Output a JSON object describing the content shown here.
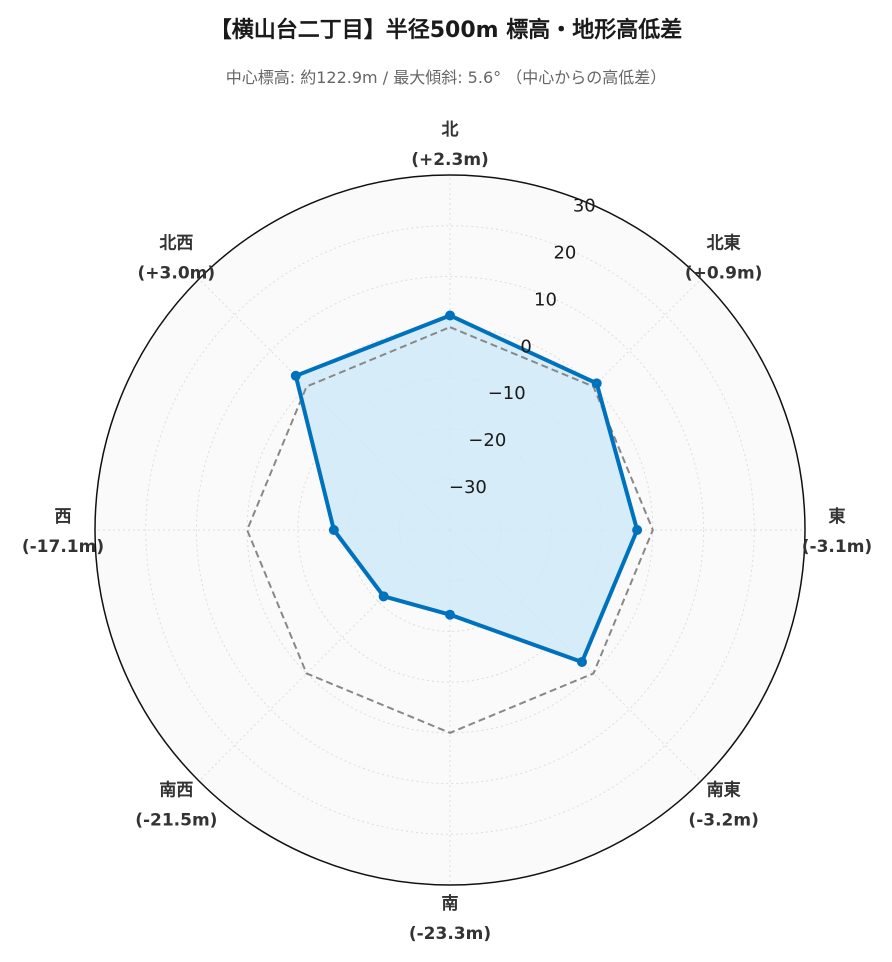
{
  "title": "【横山台二丁目】半径500m 標高・地形高低差",
  "subtitle": "中心標高: 約122.9m / 最大傾斜: 5.6° （中心からの高低差）",
  "chart_data": {
    "type": "radar",
    "categories": [
      "北",
      "北東",
      "東",
      "南東",
      "南",
      "南西",
      "西",
      "北西"
    ],
    "category_labels": [
      "(+2.3m)",
      "(+0.9m)",
      "(-3.1m)",
      "(-3.2m)",
      "(-23.3m)",
      "(-21.5m)",
      "(-17.1m)",
      "(+3.0m)"
    ],
    "values": [
      2.3,
      0.9,
      -3.1,
      -3.2,
      -23.3,
      -21.5,
      -17.1,
      3.0
    ],
    "reference_values": [
      0,
      0,
      0,
      0,
      0,
      0,
      0,
      0
    ],
    "rlim": [
      -40,
      30
    ],
    "ticks": [
      -30,
      -20,
      -10,
      0,
      10,
      20,
      30
    ],
    "grid": true,
    "colors": {
      "series": "#0072bd",
      "fill": "#cfeaf8",
      "reference": "#888888",
      "background": "#fafafa",
      "grid": "#dddddd"
    }
  }
}
